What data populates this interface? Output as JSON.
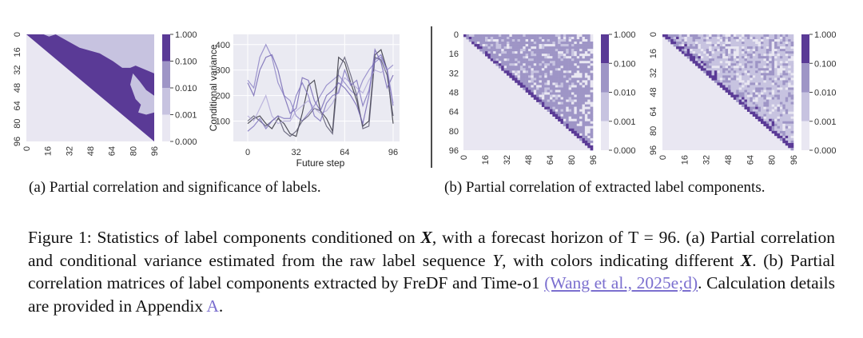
{
  "colorbar": {
    "levels": [
      "1.000",
      "0.100",
      "0.010",
      "0.001",
      "0.000"
    ],
    "colors": [
      "#5a3a96",
      "#9e95c6",
      "#c7c3e0",
      "#e9e7f2"
    ]
  },
  "heatmap_ticks": [
    "0",
    "16",
    "32",
    "48",
    "64",
    "80",
    "96"
  ],
  "panel_a": {
    "line_chart": {
      "type": "line",
      "ylabel": "Conditional variance",
      "xlabel": "Future step",
      "xticks": [
        "0",
        "32",
        "64",
        "96"
      ],
      "yticks": [
        "100",
        "200",
        "300",
        "400"
      ],
      "xlim": [
        0,
        96
      ],
      "ylim": [
        20,
        440
      ],
      "grid": true,
      "x": [
        0,
        4,
        8,
        12,
        16,
        20,
        24,
        28,
        32,
        36,
        40,
        44,
        48,
        52,
        56,
        60,
        64,
        68,
        72,
        76,
        80,
        84,
        88,
        92,
        96
      ],
      "series": [
        {
          "color": "#8a80c4",
          "values": [
            260,
            230,
            350,
            400,
            350,
            250,
            200,
            180,
            120,
            100,
            130,
            160,
            200,
            240,
            260,
            280,
            250,
            220,
            200,
            260,
            300,
            330,
            350,
            300,
            320
          ]
        },
        {
          "color": "#2b2a35",
          "values": [
            90,
            110,
            120,
            90,
            70,
            110,
            90,
            50,
            40,
            130,
            240,
            260,
            140,
            110,
            60,
            350,
            330,
            250,
            180,
            80,
            100,
            360,
            380,
            300,
            90
          ]
        },
        {
          "color": "#55536a",
          "values": [
            100,
            120,
            100,
            80,
            100,
            120,
            60,
            40,
            60,
            100,
            120,
            150,
            140,
            80,
            50,
            300,
            350,
            280,
            200,
            70,
            80,
            350,
            340,
            280,
            120
          ]
        },
        {
          "color": "#6f62b0",
          "values": [
            250,
            200,
            300,
            350,
            360,
            300,
            200,
            130,
            150,
            270,
            260,
            180,
            140,
            200,
            220,
            250,
            230,
            200,
            160,
            90,
            200,
            380,
            330,
            230,
            280
          ]
        },
        {
          "color": "#b0a8d8",
          "values": [
            120,
            100,
            150,
            200,
            120,
            90,
            100,
            100,
            140,
            160,
            180,
            150,
            130,
            140,
            170,
            220,
            270,
            250,
            230,
            210,
            260,
            300,
            290,
            310,
            170
          ]
        },
        {
          "color": "#7a6fbc",
          "values": [
            60,
            80,
            110,
            70,
            100,
            120,
            110,
            110,
            200,
            250,
            200,
            120,
            100,
            170,
            200,
            210,
            300,
            240,
            260,
            160,
            220,
            340,
            360,
            300,
            160
          ]
        }
      ]
    },
    "caption": "(a) Partial correlation and significance of labels."
  },
  "panel_b": {
    "caption": "(b) Partial correlation of extracted label components."
  },
  "figure_caption": {
    "p1": "Figure 1: Statistics of label components conditioned on ",
    "X": "X",
    "p2": ", with a forecast horizon of T = 96. (a) Partial correlation and conditional variance estimated from the raw label sequence ",
    "Y": "Y",
    "p3": ", with colors indicating different ",
    "p4": ". (b) Partial correlation matrices of label components extracted by FreDF and Time-o1 ",
    "citation": "(Wang et al., 2025e;d)",
    "p5": ". Calculation details are provided in Appendix ",
    "appendix": "A",
    "p6": "."
  }
}
